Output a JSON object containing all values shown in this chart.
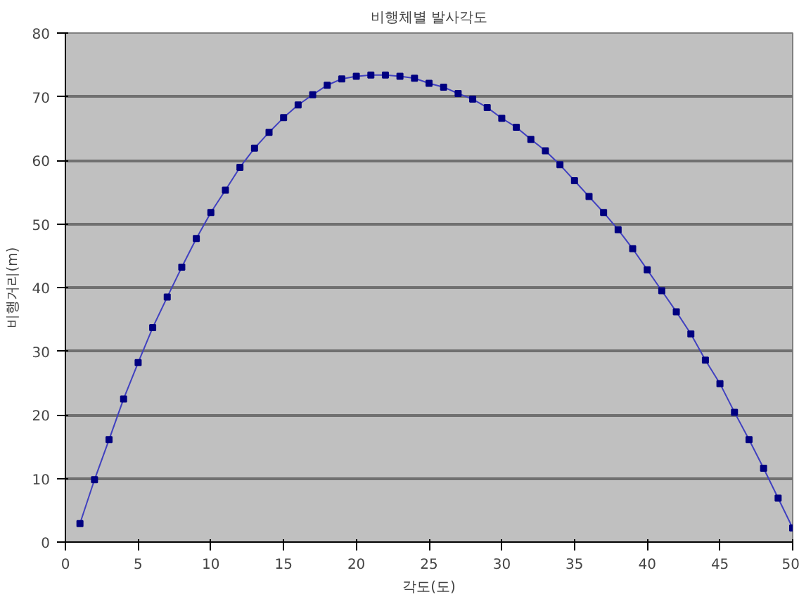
{
  "chart_data": {
    "type": "line",
    "title": "비행체별 발사각도",
    "xlabel": "각도(도)",
    "ylabel": "비행거리(m)",
    "x": [
      1,
      2,
      3,
      4,
      5,
      6,
      7,
      8,
      9,
      10,
      11,
      12,
      13,
      14,
      15,
      16,
      17,
      18,
      19,
      20,
      21,
      22,
      23,
      24,
      25,
      26,
      27,
      28,
      29,
      30,
      31,
      32,
      33,
      34,
      35,
      36,
      37,
      38,
      39,
      40,
      41,
      42,
      43,
      44,
      45,
      46,
      47,
      48,
      49,
      50
    ],
    "series": [
      {
        "color": "#000080",
        "values": [
          2.9,
          9.8,
          16.1,
          22.5,
          28.2,
          33.7,
          38.5,
          43.2,
          47.7,
          51.8,
          55.3,
          58.9,
          61.9,
          64.4,
          66.7,
          68.7,
          70.3,
          71.8,
          72.8,
          73.2,
          73.4,
          73.4,
          73.2,
          72.9,
          72.1,
          71.5,
          70.5,
          69.6,
          68.3,
          66.6,
          65.2,
          63.3,
          61.5,
          59.3,
          56.8,
          54.3,
          51.8,
          49.1,
          46.1,
          42.8,
          39.5,
          36.2,
          32.7,
          28.6,
          24.9,
          20.4,
          16.1,
          11.6,
          6.9,
          2.2
        ]
      }
    ],
    "xlim": [
      0,
      50
    ],
    "xticks": [
      0,
      5,
      10,
      15,
      20,
      25,
      30,
      35,
      40,
      45,
      50
    ],
    "ylim": [
      0,
      80
    ],
    "yticks": [
      0,
      10,
      20,
      30,
      40,
      50,
      60,
      70,
      80
    ],
    "grid": "y",
    "marker": "square",
    "line_style": "solid"
  }
}
